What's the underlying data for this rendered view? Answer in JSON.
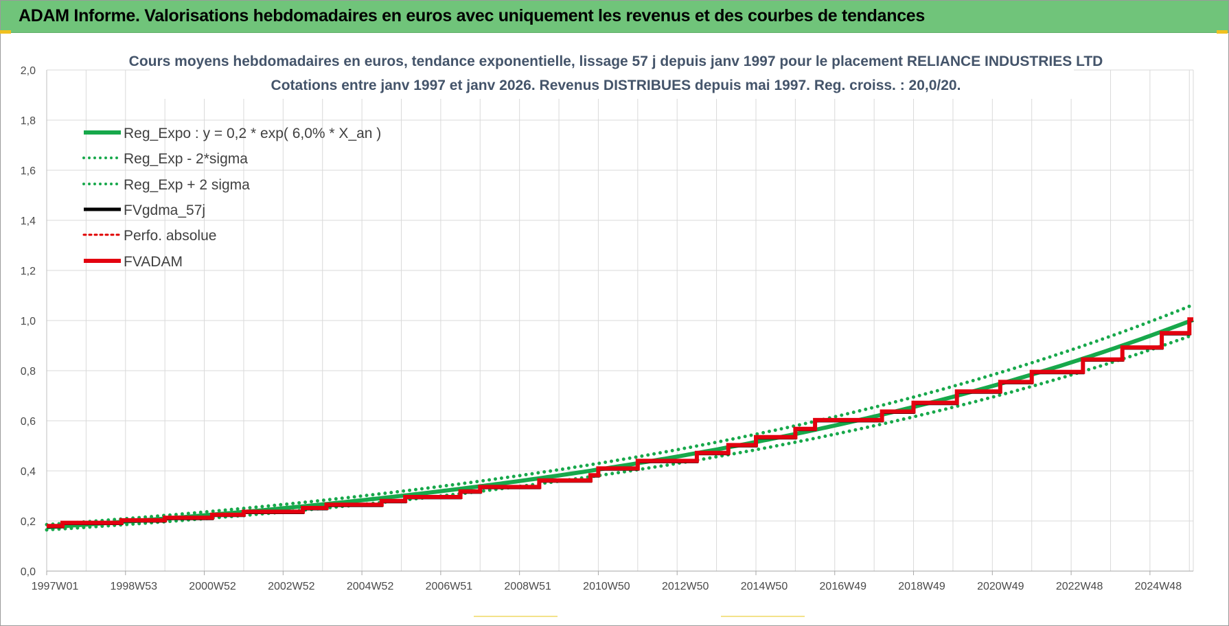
{
  "banner": {
    "title": "ADAM Informe. Valorisations hebdomadaires en euros avec uniquement les revenus et des courbes de tendances"
  },
  "colors": {
    "banner_bg": "#70c47a",
    "trend_green": "#17a84b",
    "fv_black": "#000000",
    "perf_red": "#e00000",
    "adam_red": "#e3000f",
    "grid": "#d9d9d9",
    "title_text": "#44546a"
  },
  "chart_data": {
    "type": "line",
    "title_line1": "Cours moyens hebdomadaires en euros, tendance exponentielle, lissage 57 j depuis janv 1997 pour le placement RELIANCE INDUSTRIES LTD",
    "title_line2": "Cotations entre janv 1997 et janv 2026. Revenus DISTRIBUES depuis mai 1997.  Reg. croiss. : 20,0/20.",
    "ylim": [
      0,
      2
    ],
    "yticks": [
      "0,0",
      "0,2",
      "0,4",
      "0,6",
      "0,8",
      "1,0",
      "1,2",
      "1,4",
      "1,6",
      "1,8",
      "2,0"
    ],
    "x_range_years": [
      1997.0,
      2026.1
    ],
    "x_tick_labels": [
      "1997W01",
      "1998W53",
      "2000W52",
      "2002W52",
      "2004W52",
      "2006W51",
      "2008W51",
      "2010W50",
      "2012W50",
      "2014W50",
      "2016W49",
      "2018W49",
      "2020W49",
      "2022W48",
      "2024W48"
    ],
    "x_tick_years": [
      1997.0,
      1999.0,
      2001.0,
      2003.0,
      2005.0,
      2007.0,
      2009.0,
      2011.0,
      2013.0,
      2015.0,
      2017.0,
      2019.0,
      2021.0,
      2023.0,
      2025.0
    ],
    "regression": {
      "a": 0.175,
      "rate": 0.06,
      "band_factor_low": 0.94,
      "band_factor_high": 1.06
    },
    "legend_position": "top-left",
    "series": [
      {
        "name": "Reg_Expo : y = 0,2 * exp( 6,0% *  X_an )",
        "style": "solid",
        "color": "#17a84b"
      },
      {
        "name": "Reg_Exp - 2*sigma",
        "style": "dotted",
        "color": "#17a84b"
      },
      {
        "name": "Reg_Exp + 2 sigma",
        "style": "dotted",
        "color": "#17a84b"
      },
      {
        "name": "FVgdma_57j",
        "style": "solid",
        "color": "#000000"
      },
      {
        "name": "Perfo. absolue",
        "style": "dotted",
        "color": "#e00000"
      },
      {
        "name": "FVADAM",
        "style": "solid",
        "color": "#e3000f",
        "steps": [
          {
            "x": 1997.0,
            "y": 0.18
          },
          {
            "x": 1997.4,
            "y": 0.193
          },
          {
            "x": 1998.9,
            "y": 0.203
          },
          {
            "x": 2000.0,
            "y": 0.213
          },
          {
            "x": 2001.2,
            "y": 0.225
          },
          {
            "x": 2002.0,
            "y": 0.237
          },
          {
            "x": 2003.5,
            "y": 0.252
          },
          {
            "x": 2004.1,
            "y": 0.265
          },
          {
            "x": 2005.5,
            "y": 0.28
          },
          {
            "x": 2006.1,
            "y": 0.296
          },
          {
            "x": 2007.5,
            "y": 0.318
          },
          {
            "x": 2008.0,
            "y": 0.336
          },
          {
            "x": 2009.5,
            "y": 0.362
          },
          {
            "x": 2010.8,
            "y": 0.383
          },
          {
            "x": 2011.0,
            "y": 0.41
          },
          {
            "x": 2012.0,
            "y": 0.44
          },
          {
            "x": 2013.5,
            "y": 0.472
          },
          {
            "x": 2014.3,
            "y": 0.503
          },
          {
            "x": 2015.0,
            "y": 0.535
          },
          {
            "x": 2016.0,
            "y": 0.568
          },
          {
            "x": 2016.5,
            "y": 0.603
          },
          {
            "x": 2018.2,
            "y": 0.637
          },
          {
            "x": 2019.0,
            "y": 0.672
          },
          {
            "x": 2020.1,
            "y": 0.717
          },
          {
            "x": 2021.2,
            "y": 0.755
          },
          {
            "x": 2022.0,
            "y": 0.795
          },
          {
            "x": 2023.3,
            "y": 0.845
          },
          {
            "x": 2024.3,
            "y": 0.893
          },
          {
            "x": 2025.3,
            "y": 0.95
          },
          {
            "x": 2026.0,
            "y": 1.005
          }
        ]
      }
    ]
  }
}
